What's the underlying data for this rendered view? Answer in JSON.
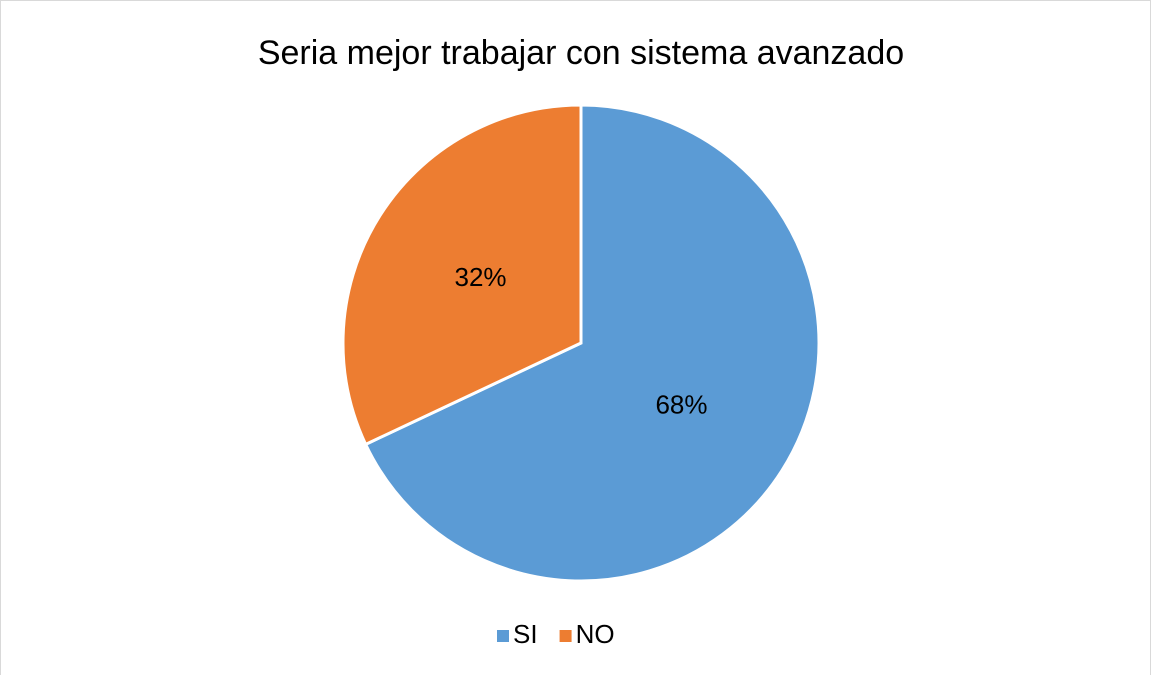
{
  "chart_data": {
    "type": "pie",
    "title": "Seria mejor trabajar con sistema avanzado",
    "categories": [
      "SI",
      "NO"
    ],
    "values": [
      68,
      32
    ],
    "value_labels": [
      "68%",
      "32%"
    ],
    "colors": [
      "#5b9bd5",
      "#ed7d31"
    ],
    "legend": "bottom"
  }
}
